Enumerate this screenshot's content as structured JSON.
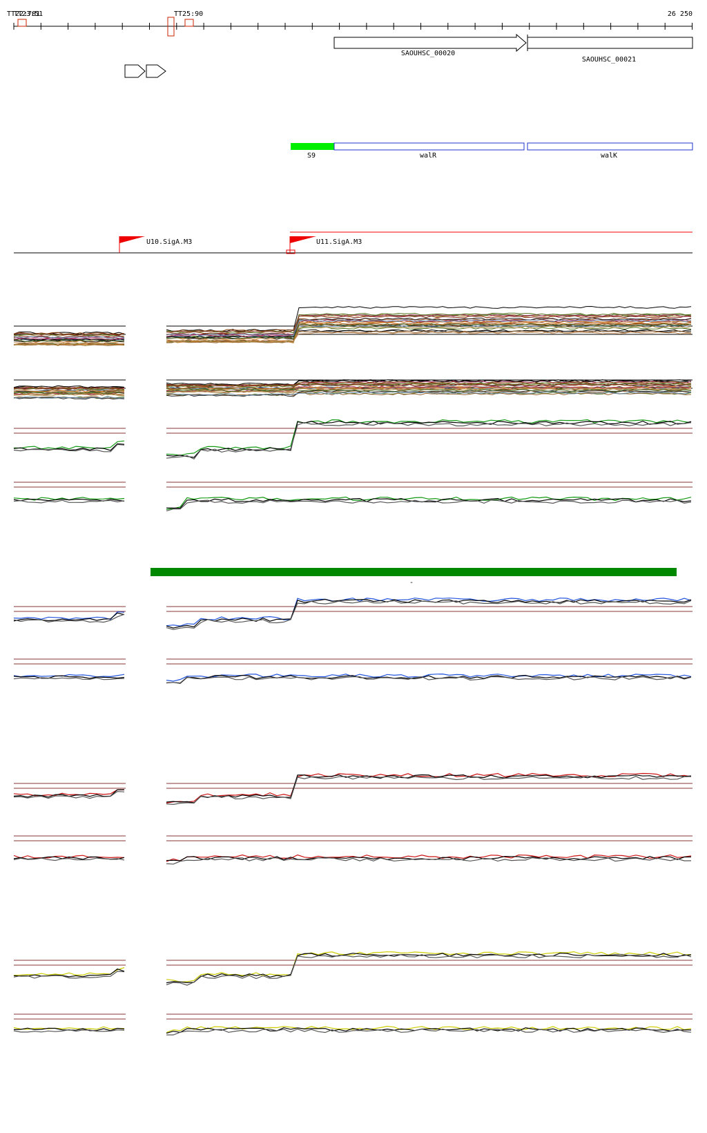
{
  "ruler": {
    "left_labels": [
      "TT22:781",
      "TT23:51"
    ],
    "mid_label": "TT25:90",
    "right_label": "26 250"
  },
  "genes": [
    {
      "name": "SAOUHSC_00020",
      "direction": "forward"
    },
    {
      "name": "SAOUHSC_00021",
      "direction": "forward"
    }
  ],
  "transcripts": [
    {
      "name": "S9",
      "color": "#00ee00"
    },
    {
      "name": "walR",
      "color": "#2233cc"
    },
    {
      "name": "walK",
      "color": "#2233cc"
    }
  ],
  "promoters": [
    {
      "name": "U10.SigA.M3"
    },
    {
      "name": "U11.SigA.M3"
    }
  ],
  "misc_label": "-",
  "colors": {
    "axis": "#000000",
    "ruler_mark": "#cc2200",
    "promoter": "#ee0000",
    "threshold": "#883333",
    "green": "#119911",
    "blue": "#2255dd",
    "red": "#cc1111",
    "yellow": "#cccc00",
    "bar": "#008800"
  },
  "tracks": [
    {
      "id": "multi-1",
      "type": "multi",
      "color": null
    },
    {
      "id": "multi-2",
      "type": "multi",
      "color": null
    },
    {
      "id": "green-1",
      "type": "step",
      "color": "green"
    },
    {
      "id": "green-2",
      "type": "flat",
      "color": "green"
    },
    {
      "id": "blue-1",
      "type": "step",
      "color": "blue"
    },
    {
      "id": "blue-2",
      "type": "flat",
      "color": "blue"
    },
    {
      "id": "red-1",
      "type": "step",
      "color": "red"
    },
    {
      "id": "red-2",
      "type": "flat",
      "color": "red"
    },
    {
      "id": "yellow-1",
      "type": "step",
      "color": "yellow"
    },
    {
      "id": "yellow-2",
      "type": "flat",
      "color": "yellow"
    }
  ]
}
